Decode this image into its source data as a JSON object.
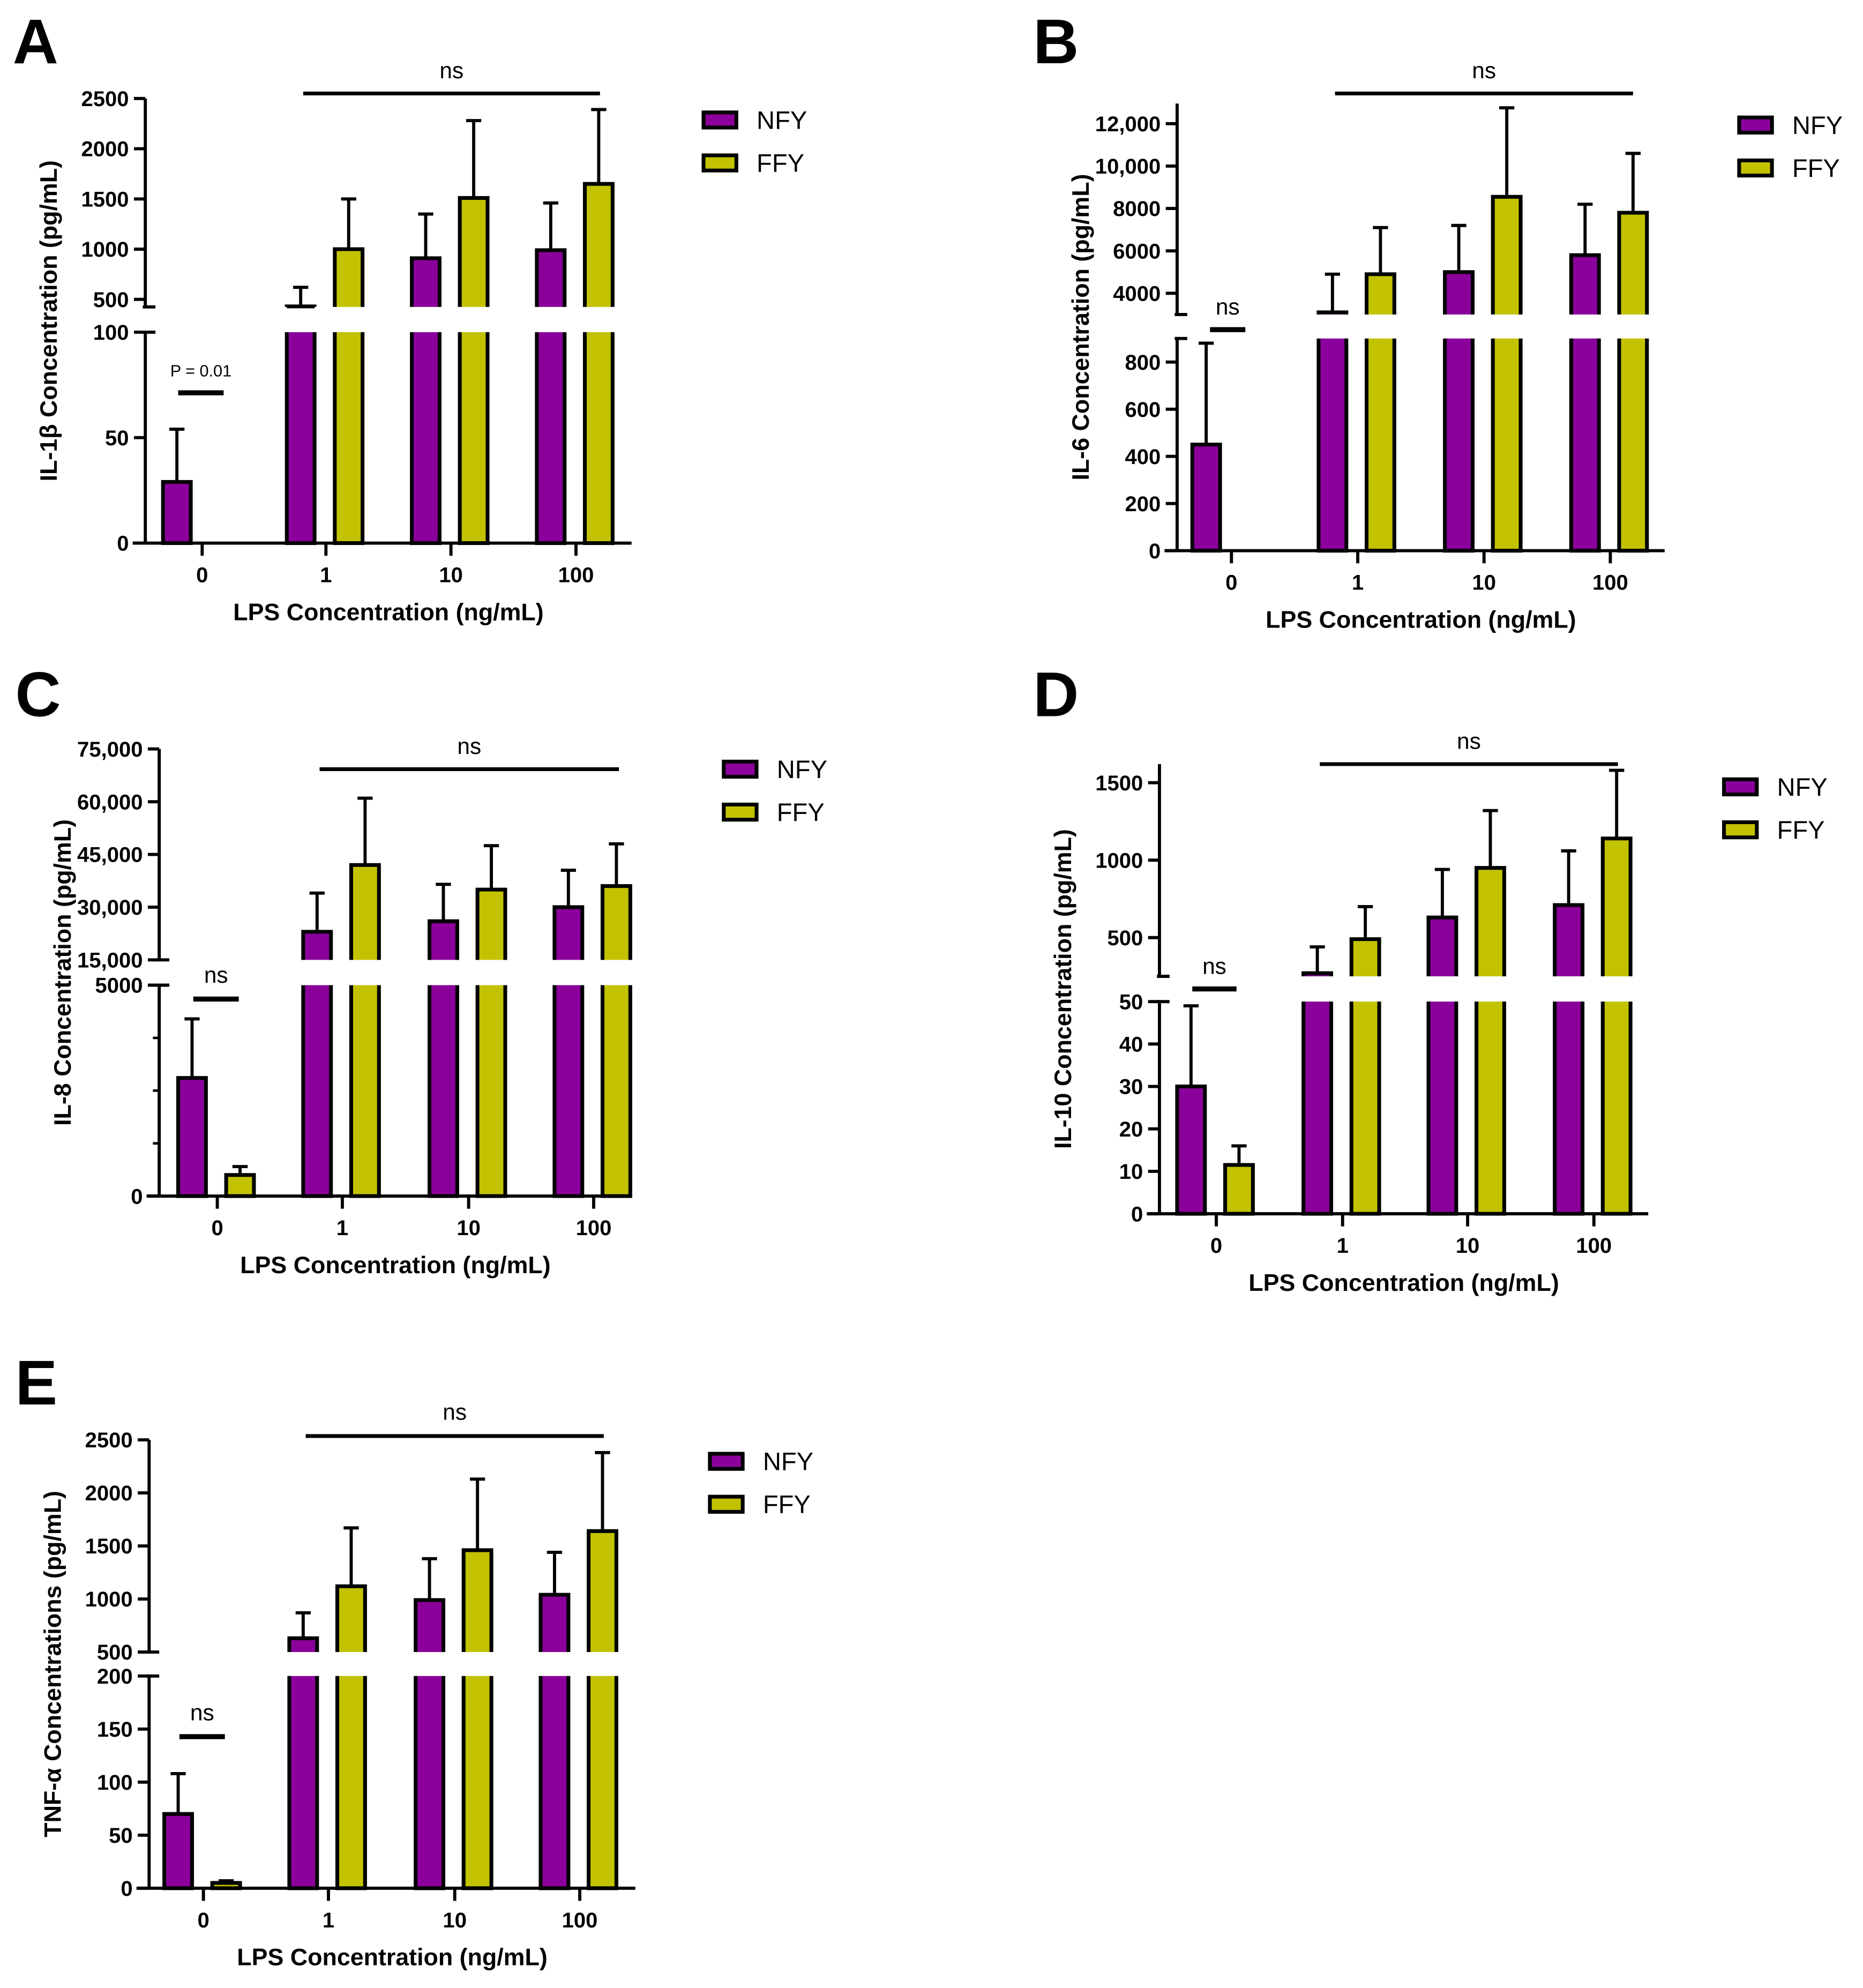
{
  "colors": {
    "NFY": "#8B009B",
    "FFY": "#C2C200",
    "outline": "#000000"
  },
  "chart_data": [
    {
      "panel": "A",
      "type": "bar",
      "categories": [
        "0",
        "1",
        "10",
        "100"
      ],
      "xlabel": "LPS Concentration (ng/mL)",
      "ylabel": "IL-1β Concentration (pg/mL)",
      "y_axis_break": true,
      "ylim_lower": [
        0,
        100
      ],
      "yticks_lower": [
        "0",
        "50",
        "100"
      ],
      "ylim_upper": [
        425,
        2500
      ],
      "yticks_upper": [
        "500",
        "1000",
        "1500",
        "2000",
        "2500"
      ],
      "legend": "top-right",
      "series": [
        {
          "name": "NFY",
          "values": [
            29,
            430,
            910,
            990
          ],
          "error_upper": [
            54,
            620,
            1350,
            1460
          ]
        },
        {
          "name": "FFY",
          "values": [
            0,
            1000,
            1510,
            1650
          ],
          "error_upper": [
            0,
            1500,
            2280,
            2390
          ]
        }
      ],
      "annotations": [
        {
          "text": "P = 0.01",
          "span": [
            "0"
          ]
        },
        {
          "text": "ns",
          "span": [
            "1",
            "100"
          ]
        }
      ]
    },
    {
      "panel": "B",
      "type": "bar",
      "categories": [
        "0",
        "1",
        "10",
        "100"
      ],
      "xlabel": "LPS Concentration (ng/mL)",
      "ylabel": "IL-6 Concentration (pg/mL)",
      "y_axis_break": true,
      "ylim_lower": [
        0,
        900
      ],
      "yticks_lower": [
        "0",
        "200",
        "400",
        "600",
        "800"
      ],
      "ylim_upper": [
        3000,
        12950
      ],
      "yticks_upper": [
        "4000",
        "6000",
        "8000",
        "10,000",
        "12,000"
      ],
      "legend": "top-right",
      "series": [
        {
          "name": "NFY",
          "values": [
            450,
            3100,
            5000,
            5800
          ],
          "error_upper": [
            880,
            4900,
            7200,
            8200
          ]
        },
        {
          "name": "FFY",
          "values": [
            0,
            4900,
            8550,
            7800
          ],
          "error_upper": [
            0,
            7100,
            12750,
            10600
          ]
        }
      ],
      "annotations": [
        {
          "text": "ns",
          "span": [
            "0"
          ]
        },
        {
          "text": "ns",
          "span": [
            "1",
            "100"
          ]
        }
      ]
    },
    {
      "panel": "C",
      "type": "bar",
      "categories": [
        "0",
        "1",
        "10",
        "100"
      ],
      "xlabel": "LPS Concentration (ng/mL)",
      "ylabel": "IL-8 Concentration (pg/mL)",
      "y_axis_break": true,
      "ylim_lower": [
        0,
        5000
      ],
      "yticks_lower": [
        "0",
        "5000"
      ],
      "ylim_upper": [
        15000,
        75000
      ],
      "yticks_upper": [
        "15,000",
        "30,000",
        "45,000",
        "60,000",
        "75,000"
      ],
      "legend": "top-right",
      "series": [
        {
          "name": "NFY",
          "values": [
            2800,
            23000,
            26000,
            30000
          ],
          "error_upper": [
            4200,
            34000,
            36500,
            40500
          ]
        },
        {
          "name": "FFY",
          "values": [
            500,
            42000,
            35000,
            36000
          ],
          "error_upper": [
            700,
            61000,
            47500,
            48000
          ]
        }
      ],
      "annotations": [
        {
          "text": "ns",
          "span": [
            "0"
          ]
        },
        {
          "text": "ns",
          "span": [
            "1",
            "100"
          ]
        }
      ]
    },
    {
      "panel": "D",
      "type": "bar",
      "categories": [
        "0",
        "1",
        "10",
        "100"
      ],
      "xlabel": "LPS Concentration (ng/mL)",
      "ylabel": "IL-10 Concentration (pg/mL)",
      "y_axis_break": true,
      "ylim_lower": [
        0,
        50
      ],
      "yticks_lower": [
        "0",
        "10",
        "20",
        "30",
        "40",
        "50"
      ],
      "ylim_upper": [
        250,
        1620
      ],
      "yticks_upper": [
        "500",
        "1000",
        "1500"
      ],
      "legend": "top-right",
      "series": [
        {
          "name": "NFY",
          "values": [
            30,
            270,
            630,
            710
          ],
          "error_upper": [
            49,
            440,
            940,
            1060
          ]
        },
        {
          "name": "FFY",
          "values": [
            11.5,
            490,
            950,
            1140
          ],
          "error_upper": [
            16,
            700,
            1320,
            1580
          ]
        }
      ],
      "annotations": [
        {
          "text": "ns",
          "span": [
            "0"
          ]
        },
        {
          "text": "ns",
          "span": [
            "1",
            "100"
          ]
        }
      ]
    },
    {
      "panel": "E",
      "type": "bar",
      "categories": [
        "0",
        "1",
        "10",
        "100"
      ],
      "xlabel": "LPS Concentration (ng/mL)",
      "ylabel": "TNF-α Concentrations (pg/mL)",
      "y_axis_break": true,
      "ylim_lower": [
        0,
        200
      ],
      "yticks_lower": [
        "0",
        "50",
        "100",
        "150",
        "200"
      ],
      "ylim_upper": [
        500,
        2500
      ],
      "yticks_upper": [
        "500",
        "1000",
        "1500",
        "2000",
        "2500"
      ],
      "legend": "top-right",
      "series": [
        {
          "name": "NFY",
          "values": [
            70,
            630,
            990,
            1040
          ],
          "error_upper": [
            108,
            870,
            1380,
            1440
          ]
        },
        {
          "name": "FFY",
          "values": [
            5,
            1120,
            1460,
            1640
          ],
          "error_upper": [
            7,
            1670,
            2130,
            2380
          ]
        }
      ],
      "annotations": [
        {
          "text": "ns",
          "span": [
            "0"
          ]
        },
        {
          "text": "ns",
          "span": [
            "1",
            "100"
          ]
        }
      ]
    }
  ]
}
